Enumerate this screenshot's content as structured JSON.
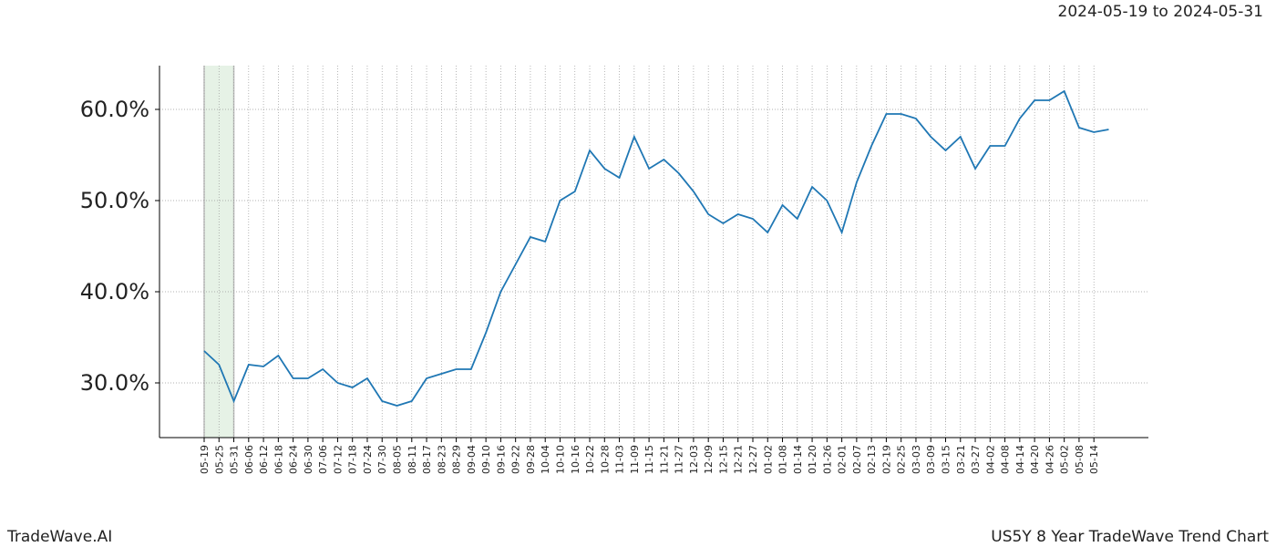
{
  "chart_data": {
    "type": "line",
    "subtitle": "2024-05-19 to 2024-05-31",
    "footer_left": "TradeWave.AI",
    "footer_right": "US5Y 8 Year TradeWave Trend Chart",
    "highlight": {
      "from": "05-19",
      "to": "05-31",
      "color": "#d5ead5"
    },
    "x": [
      "05-19",
      "05-25",
      "05-31",
      "06-06",
      "06-12",
      "06-18",
      "06-24",
      "06-30",
      "07-06",
      "07-12",
      "07-18",
      "07-24",
      "07-30",
      "08-05",
      "08-11",
      "08-17",
      "08-23",
      "08-29",
      "09-04",
      "09-10",
      "09-16",
      "09-22",
      "09-28",
      "10-04",
      "10-10",
      "10-16",
      "10-22",
      "10-28",
      "11-03",
      "11-09",
      "11-15",
      "11-21",
      "11-27",
      "12-03",
      "12-09",
      "12-15",
      "12-21",
      "12-27",
      "01-02",
      "01-08",
      "01-14",
      "01-20",
      "01-26",
      "02-01",
      "02-07",
      "02-13",
      "02-19",
      "02-25",
      "03-03",
      "03-09",
      "03-15",
      "03-21",
      "03-27",
      "04-02",
      "04-08",
      "04-14",
      "04-20",
      "04-26",
      "05-02",
      "05-08",
      "05-14",
      null
    ],
    "series": [
      {
        "name": "US5Y",
        "color": "#1f77b4",
        "values": [
          33.5,
          32,
          28,
          32,
          31.8,
          33,
          30.5,
          30.5,
          31.5,
          30,
          29.5,
          30.5,
          28,
          27.5,
          28,
          30.5,
          31,
          31.5,
          31.5,
          35.5,
          40,
          43,
          46,
          45.5,
          50,
          51,
          55.5,
          53.5,
          52.5,
          57,
          53.5,
          54.5,
          53,
          51,
          48.5,
          47.5,
          48.5,
          48,
          46.5,
          49.5,
          48,
          51.5,
          50,
          46.5,
          52,
          56,
          59.5,
          59.5,
          59,
          57,
          55.5,
          57,
          53.5,
          56,
          56,
          59,
          61,
          61,
          62,
          58,
          57.5,
          57.8
        ]
      }
    ],
    "ylim": [
      24,
      64.8
    ],
    "yticks": [
      {
        "value": 30,
        "label": "30.0%"
      },
      {
        "value": 40,
        "label": "40.0%"
      },
      {
        "value": 50,
        "label": "50.0%"
      },
      {
        "value": 60,
        "label": "60.0%"
      }
    ],
    "grid": true
  }
}
